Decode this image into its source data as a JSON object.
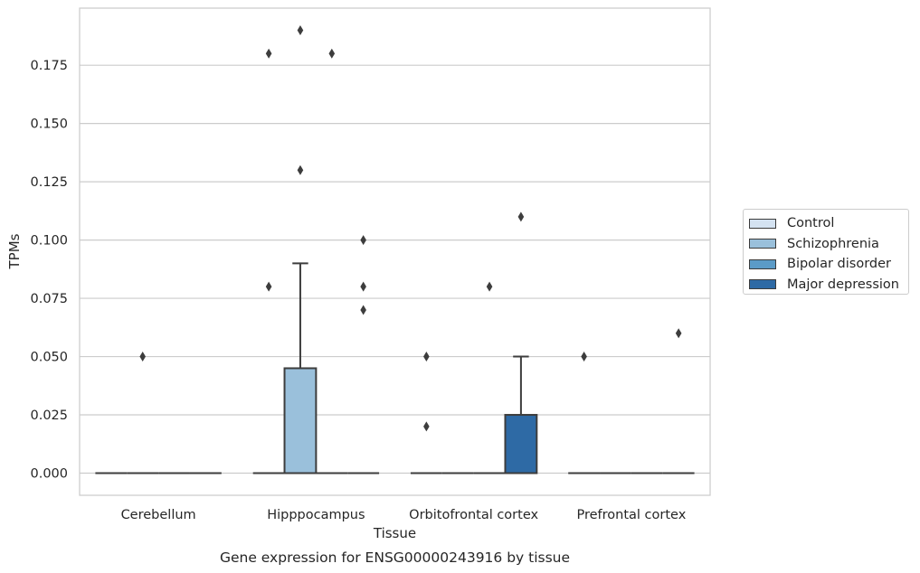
{
  "chart_data": {
    "type": "box",
    "title": "Gene expression for ENSG00000243916 by tissue",
    "xlabel": "Tissue",
    "ylabel": "TPMs",
    "ylim": [
      -0.0095,
      0.1995
    ],
    "yticks": [
      "0.000",
      "0.025",
      "0.050",
      "0.075",
      "0.100",
      "0.125",
      "0.150",
      "0.175"
    ],
    "grid": true,
    "legend_position": "right",
    "categories": [
      "Cerebellum",
      "Hipppocampus",
      "Orbitofrontal cortex",
      "Prefrontal cortex"
    ],
    "series": [
      {
        "name": "Control",
        "color": "#d4e2f1",
        "boxes": [
          {
            "category": "Cerebellum",
            "q1": 0,
            "median": 0,
            "q3": 0,
            "whisker_low": 0,
            "whisker_high": 0,
            "outliers": []
          },
          {
            "category": "Hipppocampus",
            "q1": 0,
            "median": 0,
            "q3": 0,
            "whisker_low": 0,
            "whisker_high": 0,
            "outliers": [
              0.08,
              0.18
            ]
          },
          {
            "category": "Orbitofrontal cortex",
            "q1": 0,
            "median": 0,
            "q3": 0,
            "whisker_low": 0,
            "whisker_high": 0,
            "outliers": [
              0.02,
              0.05
            ]
          },
          {
            "category": "Prefrontal cortex",
            "q1": 0,
            "median": 0,
            "q3": 0,
            "whisker_low": 0,
            "whisker_high": 0,
            "outliers": [
              0.05
            ]
          }
        ]
      },
      {
        "name": "Schizophrenia",
        "color": "#9ac0db",
        "boxes": [
          {
            "category": "Cerebellum",
            "q1": 0,
            "median": 0,
            "q3": 0,
            "whisker_low": 0,
            "whisker_high": 0,
            "outliers": [
              0.05
            ]
          },
          {
            "category": "Hipppocampus",
            "q1": 0,
            "median": 0,
            "q3": 0.045,
            "whisker_low": 0,
            "whisker_high": 0.09,
            "outliers": [
              0.13,
              0.19
            ]
          },
          {
            "category": "Orbitofrontal cortex",
            "q1": 0,
            "median": 0,
            "q3": 0,
            "whisker_low": 0,
            "whisker_high": 0,
            "outliers": []
          },
          {
            "category": "Prefrontal cortex",
            "q1": 0,
            "median": 0,
            "q3": 0,
            "whisker_low": 0,
            "whisker_high": 0,
            "outliers": []
          }
        ]
      },
      {
        "name": "Bipolar disorder",
        "color": "#5b9bc7",
        "boxes": [
          {
            "category": "Cerebellum",
            "q1": 0,
            "median": 0,
            "q3": 0,
            "whisker_low": 0,
            "whisker_high": 0,
            "outliers": []
          },
          {
            "category": "Hipppocampus",
            "q1": 0,
            "median": 0,
            "q3": 0,
            "whisker_low": 0,
            "whisker_high": 0,
            "outliers": [
              0.18
            ]
          },
          {
            "category": "Orbitofrontal cortex",
            "q1": 0,
            "median": 0,
            "q3": 0,
            "whisker_low": 0,
            "whisker_high": 0,
            "outliers": [
              0.08
            ]
          },
          {
            "category": "Prefrontal cortex",
            "q1": 0,
            "median": 0,
            "q3": 0,
            "whisker_low": 0,
            "whisker_high": 0,
            "outliers": []
          }
        ]
      },
      {
        "name": "Major depression",
        "color": "#2e6aa5",
        "boxes": [
          {
            "category": "Cerebellum",
            "q1": 0,
            "median": 0,
            "q3": 0,
            "whisker_low": 0,
            "whisker_high": 0,
            "outliers": []
          },
          {
            "category": "Hipppocampus",
            "q1": 0,
            "median": 0,
            "q3": 0,
            "whisker_low": 0,
            "whisker_high": 0,
            "outliers": [
              0.07,
              0.08,
              0.1
            ]
          },
          {
            "category": "Orbitofrontal cortex",
            "q1": 0,
            "median": 0,
            "q3": 0.025,
            "whisker_low": 0,
            "whisker_high": 0.05,
            "outliers": [
              0.11
            ]
          },
          {
            "category": "Prefrontal cortex",
            "q1": 0,
            "median": 0,
            "q3": 0,
            "whisker_low": 0,
            "whisker_high": 0,
            "outliers": [
              0.06
            ]
          }
        ]
      }
    ]
  }
}
